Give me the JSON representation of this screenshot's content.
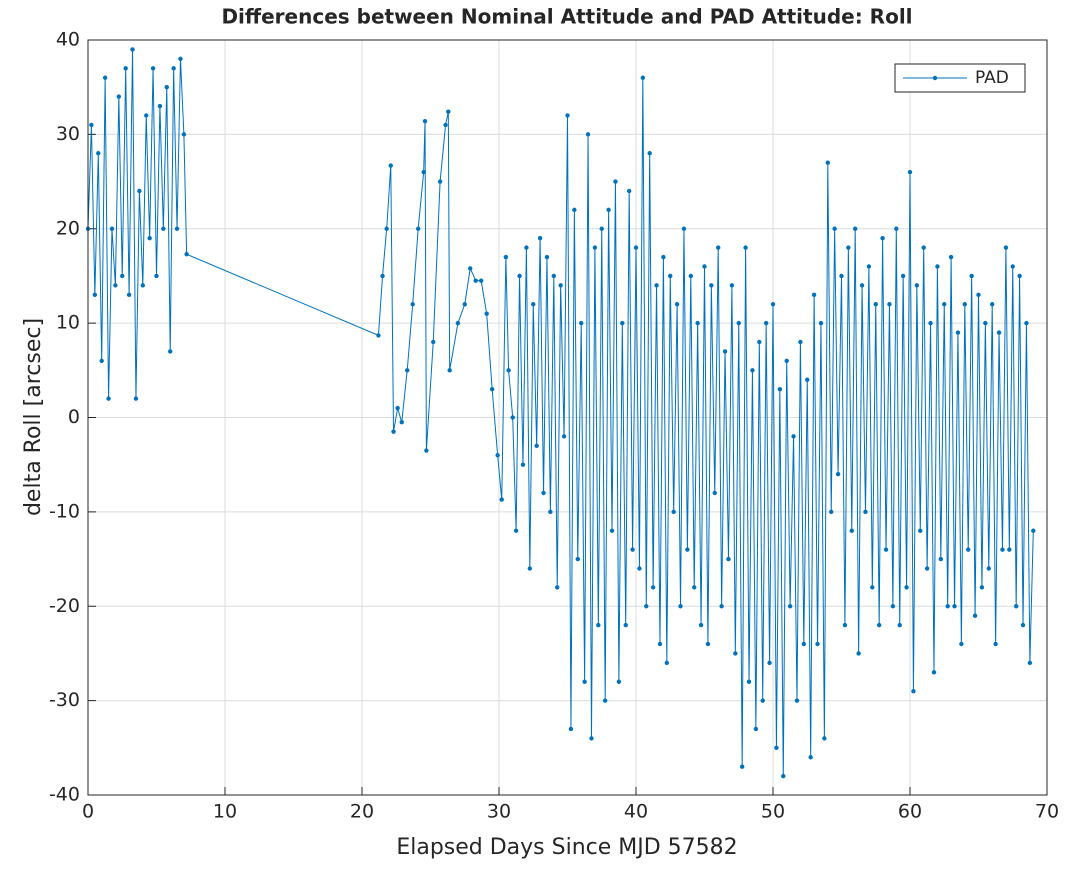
{
  "chart_data": {
    "type": "line",
    "title": "Differences between Nominal Attitude and PAD Attitude: Roll",
    "xlabel": "Elapsed Days Since MJD 57582",
    "ylabel": "delta Roll [arcsec]",
    "x": [
      0,
      0.25,
      0.5,
      0.75,
      1,
      1.25,
      1.5,
      1.75,
      2,
      2.25,
      2.5,
      2.75,
      3,
      3.25,
      3.5,
      3.75,
      4,
      4.25,
      4.5,
      4.75,
      5,
      5.25,
      5.5,
      5.75,
      6,
      6.25,
      6.5,
      6.75,
      7,
      7.2,
      21.2,
      21.5,
      21.8,
      22.1,
      22.3,
      22.6,
      22.9,
      23.3,
      23.7,
      24.1,
      24.5,
      24.6,
      24.7,
      25.2,
      25.7,
      26.1,
      26.3,
      26.4,
      27,
      27.5,
      27.9,
      28.3,
      28.7,
      29.1,
      29.5,
      29.9,
      30.2,
      30.5,
      30.7,
      31,
      31.25,
      31.5,
      31.75,
      32,
      32.25,
      32.5,
      32.75,
      33,
      33.25,
      33.5,
      33.75,
      34,
      34.25,
      34.5,
      34.75,
      35,
      35.25,
      35.5,
      35.75,
      36,
      36.25,
      36.5,
      36.75,
      37,
      37.25,
      37.5,
      37.75,
      38,
      38.25,
      38.5,
      38.75,
      39,
      39.25,
      39.5,
      39.75,
      40,
      40.25,
      40.5,
      40.75,
      41,
      41.25,
      41.5,
      41.75,
      42,
      42.25,
      42.5,
      42.75,
      43,
      43.25,
      43.5,
      43.75,
      44,
      44.25,
      44.5,
      44.75,
      45,
      45.25,
      45.5,
      45.75,
      46,
      46.25,
      46.5,
      46.75,
      47,
      47.25,
      47.5,
      47.75,
      48,
      48.25,
      48.5,
      48.75,
      49,
      49.25,
      49.5,
      49.75,
      50,
      50.25,
      50.5,
      50.75,
      51,
      51.25,
      51.5,
      51.75,
      52,
      52.25,
      52.5,
      52.75,
      53,
      53.25,
      53.5,
      53.75,
      54,
      54.25,
      54.5,
      54.75,
      55,
      55.25,
      55.5,
      55.75,
      56,
      56.25,
      56.5,
      56.75,
      57,
      57.25,
      57.5,
      57.75,
      58,
      58.25,
      58.5,
      58.75,
      59,
      59.25,
      59.5,
      59.75,
      60,
      60.25,
      60.5,
      60.75,
      61,
      61.25,
      61.5,
      61.75,
      62,
      62.25,
      62.5,
      62.75,
      63,
      63.25,
      63.5,
      63.75,
      64,
      64.25,
      64.5,
      64.75,
      65,
      65.25,
      65.5,
      65.75,
      66,
      66.25,
      66.5,
      66.75,
      67,
      67.25,
      67.5,
      67.75,
      68,
      68.25,
      68.5,
      68.75,
      69
    ],
    "series": [
      {
        "name": "PAD",
        "color": "#0072bd",
        "values": [
          20,
          31,
          13,
          28,
          6,
          36,
          2,
          20,
          14,
          34,
          15,
          37,
          13,
          39,
          2,
          24,
          14,
          32,
          19,
          37,
          15,
          33,
          20,
          35,
          7,
          37,
          20,
          38,
          30,
          17.3,
          8.7,
          15,
          20,
          26.7,
          -1.5,
          1,
          -0.5,
          5,
          12,
          20,
          26,
          31.4,
          -3.5,
          8,
          25,
          31,
          32.4,
          5,
          10,
          12,
          15.8,
          14.5,
          14.5,
          11,
          3,
          -4,
          -8.7,
          17,
          5,
          0,
          -12,
          15,
          -5,
          18,
          -16,
          12,
          -3,
          19,
          -8,
          17,
          -10,
          15,
          -18,
          14,
          -2,
          32,
          -33,
          22,
          -15,
          10,
          -28,
          30,
          -34,
          18,
          -22,
          20,
          -30,
          22,
          -12,
          25,
          -28,
          10,
          -22,
          24,
          -14,
          18,
          -16,
          36,
          -20,
          28,
          -18,
          14,
          -24,
          17,
          -26,
          15,
          -10,
          12,
          -20,
          20,
          -14,
          15,
          -18,
          10,
          -22,
          16,
          -24,
          14,
          -8,
          18,
          -20,
          7,
          -15,
          14,
          -25,
          10,
          -37,
          18,
          -28,
          5,
          -33,
          8,
          -30,
          10,
          -26,
          12,
          -35,
          3,
          -38,
          6,
          -20,
          -2,
          -30,
          8,
          -24,
          4,
          -36,
          13,
          -24,
          10,
          -34,
          27,
          -10,
          20,
          -6,
          15,
          -22,
          18,
          -12,
          20,
          -25,
          14,
          -10,
          16,
          -18,
          12,
          -22,
          19,
          -14,
          12,
          -20,
          20,
          -22,
          15,
          -18,
          26,
          -29,
          14,
          -12,
          18,
          -16,
          10,
          -27,
          16,
          -15,
          12,
          -20,
          17,
          -20,
          9,
          -24,
          12,
          -14,
          15,
          -21,
          13,
          -18,
          10,
          -16,
          12,
          -24,
          9,
          -14,
          18,
          -14,
          16,
          -20,
          15,
          -22,
          10,
          -26,
          -12
        ]
      }
    ],
    "xlim": [
      0,
      70
    ],
    "ylim": [
      -40,
      40
    ],
    "xticks": [
      0,
      10,
      20,
      30,
      40,
      50,
      60,
      70
    ],
    "yticks": [
      -40,
      -30,
      -20,
      -10,
      0,
      10,
      20,
      30,
      40
    ],
    "grid": true,
    "legend": "upper right"
  }
}
